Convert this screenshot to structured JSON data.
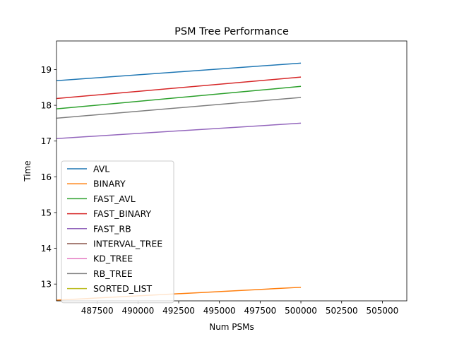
{
  "chart_data": {
    "type": "line",
    "title": "PSM Tree Performance",
    "xlabel": "Num PSMs",
    "ylabel": "Time",
    "xlim": [
      485000,
      506500
    ],
    "ylim": [
      12.53,
      19.8
    ],
    "xticks": [
      487500,
      490000,
      492500,
      495000,
      497500,
      500000,
      502500,
      505000
    ],
    "xtick_labels": [
      "487500",
      "490000",
      "492500",
      "495000",
      "497500",
      "500000",
      "502500",
      "505000"
    ],
    "yticks": [
      13,
      14,
      15,
      16,
      17,
      18,
      19
    ],
    "ytick_labels": [
      "13",
      "14",
      "15",
      "16",
      "17",
      "18",
      "19"
    ],
    "grid": false,
    "legend_position": "center-left",
    "series": [
      {
        "name": "AVL",
        "color": "#1f77b4",
        "x": [
          485000,
          500000
        ],
        "y": [
          18.69,
          19.18
        ]
      },
      {
        "name": "BINARY",
        "color": "#ff7f0e",
        "x": [
          485000,
          500000
        ],
        "y": [
          12.55,
          12.91
        ]
      },
      {
        "name": "FAST_AVL",
        "color": "#2ca02c",
        "x": [
          485000,
          500000
        ],
        "y": [
          17.9,
          18.53
        ]
      },
      {
        "name": "FAST_BINARY",
        "color": "#d62728",
        "x": [
          485000,
          500000
        ],
        "y": [
          18.19,
          18.79
        ]
      },
      {
        "name": "FAST_RB",
        "color": "#9467bd",
        "x": [
          485000,
          500000
        ],
        "y": [
          17.07,
          17.5
        ]
      },
      {
        "name": "INTERVAL_TREE",
        "color": "#8c564b",
        "x": [],
        "y": []
      },
      {
        "name": "KD_TREE",
        "color": "#e377c2",
        "x": [],
        "y": []
      },
      {
        "name": "RB_TREE",
        "color": "#7f7f7f",
        "x": [
          485000,
          500000
        ],
        "y": [
          17.64,
          18.22
        ]
      },
      {
        "name": "SORTED_LIST",
        "color": "#bcbd22",
        "x": [],
        "y": []
      }
    ]
  }
}
